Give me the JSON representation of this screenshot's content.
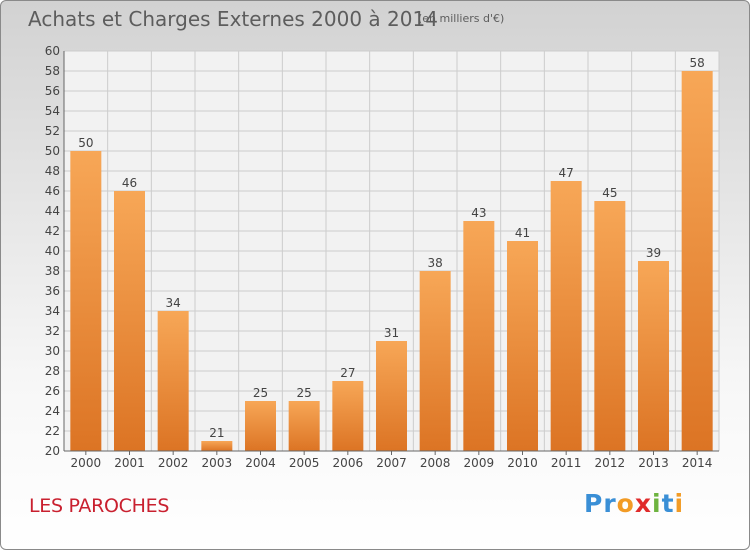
{
  "header": {
    "title": "Achats et Charges Externes 2000 à 2014",
    "unit": "(en milliers d'€)"
  },
  "footer": {
    "place": "LES PAROCHES",
    "logo_letters": [
      {
        "ch": "P",
        "color": "#3a8fd6"
      },
      {
        "ch": "r",
        "color": "#3a8fd6"
      },
      {
        "ch": "o",
        "color": "#f29b25"
      },
      {
        "ch": "x",
        "color": "#e02b2b"
      },
      {
        "ch": "i",
        "color": "#6db33f"
      },
      {
        "ch": "t",
        "color": "#3a8fd6"
      },
      {
        "ch": "i",
        "color": "#f29b25"
      }
    ]
  },
  "colors": {
    "bar_light": "#f7a757",
    "bar_dark": "#dc7424",
    "grid": "#cccccc",
    "text": "#444444",
    "title_text": "#5d5d5d",
    "place_text": "#c9202f"
  },
  "chart_data": {
    "type": "bar",
    "categories": [
      "2000",
      "2001",
      "2002",
      "2003",
      "2004",
      "2005",
      "2006",
      "2007",
      "2008",
      "2009",
      "2010",
      "2011",
      "2012",
      "2013",
      "2014"
    ],
    "values": [
      50,
      46,
      34,
      21,
      25,
      25,
      27,
      31,
      38,
      43,
      41,
      47,
      45,
      39,
      58
    ],
    "ylim": [
      20,
      60
    ],
    "ytick_step": 2,
    "grid": true,
    "value_labels": true
  }
}
